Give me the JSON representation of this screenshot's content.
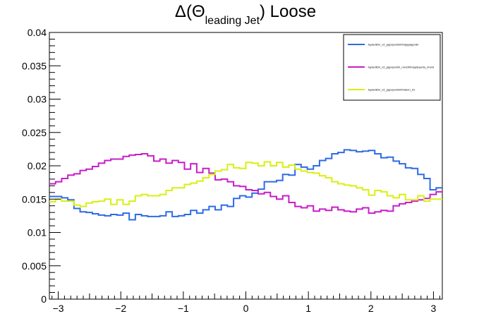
{
  "chart_data": {
    "type": "line",
    "title": {
      "prefix": "Δ(Θ",
      "subscript": "leading Jet",
      "suffix": ") Loose"
    },
    "xlabel": "",
    "ylabel": "",
    "xlim": [
      -3.1416,
      3.1416
    ],
    "ylim": [
      0,
      0.04
    ],
    "x_ticks": [
      -3,
      -2,
      -1,
      0,
      1,
      2,
      3
    ],
    "x_tick_labels": [
      "−3",
      "−2",
      "−1",
      "0",
      "1",
      "2",
      "3"
    ],
    "y_ticks": [
      0,
      0.005,
      0.01,
      0.015,
      0.02,
      0.025,
      0.03,
      0.035,
      0.04
    ],
    "y_tick_labels": [
      "0",
      "0.005",
      "0.01",
      "0.015",
      "0.02",
      "0.025",
      "0.03",
      "0.035",
      "0.04"
    ],
    "grid": false,
    "legend_position": "top-right",
    "bins": 64,
    "series": [
      {
        "name": "tuple/dDn_v2_pppvpxx0n/hhdyyyappnbr",
        "color": "#2e6be6",
        "values": [
          0.0154,
          0.0154,
          0.0152,
          0.0149,
          0.0136,
          0.0131,
          0.013,
          0.0128,
          0.0126,
          0.0125,
          0.0127,
          0.0126,
          0.0129,
          0.0119,
          0.0127,
          0.0125,
          0.0124,
          0.0124,
          0.0125,
          0.0131,
          0.0124,
          0.0125,
          0.0127,
          0.0133,
          0.0129,
          0.0134,
          0.0139,
          0.0134,
          0.0141,
          0.0139,
          0.0151,
          0.0155,
          0.0153,
          0.0159,
          0.0165,
          0.0176,
          0.0176,
          0.0178,
          0.0187,
          0.0186,
          0.0202,
          0.0198,
          0.0195,
          0.02,
          0.0208,
          0.0211,
          0.0218,
          0.022,
          0.0224,
          0.0223,
          0.0221,
          0.0222,
          0.0223,
          0.0218,
          0.0212,
          0.0213,
          0.0207,
          0.0203,
          0.0197,
          0.0196,
          0.0187,
          0.0181,
          0.0164,
          0.0167
        ]
      },
      {
        "name": "tuple/dDn_v2_pppvpxx0n_nnvchhh/ppduyvdu_nnvnt",
        "color": "#c81ec8",
        "values": [
          0.0173,
          0.0176,
          0.0181,
          0.0186,
          0.0188,
          0.0193,
          0.0195,
          0.0199,
          0.0204,
          0.0208,
          0.021,
          0.021,
          0.0214,
          0.0216,
          0.0217,
          0.0218,
          0.0215,
          0.0207,
          0.021,
          0.0204,
          0.0208,
          0.0205,
          0.0195,
          0.0203,
          0.019,
          0.0196,
          0.0189,
          0.0179,
          0.018,
          0.0176,
          0.017,
          0.0169,
          0.0164,
          0.0163,
          0.0158,
          0.016,
          0.0154,
          0.015,
          0.0155,
          0.0145,
          0.0139,
          0.0137,
          0.014,
          0.0132,
          0.0135,
          0.0133,
          0.0138,
          0.0134,
          0.0132,
          0.0131,
          0.0135,
          0.0137,
          0.0129,
          0.0131,
          0.0133,
          0.0132,
          0.014,
          0.0143,
          0.0145,
          0.0147,
          0.0149,
          0.0151,
          0.0157,
          0.0161
        ]
      },
      {
        "name": "tuple/dDn_v2_pppvpxx0n/hhdunn_01",
        "color": "#d8f012",
        "values": [
          0.0146,
          0.015,
          0.0147,
          0.0147,
          0.0141,
          0.0139,
          0.0144,
          0.0146,
          0.0147,
          0.015,
          0.0142,
          0.0149,
          0.0142,
          0.0147,
          0.0155,
          0.0157,
          0.0155,
          0.0155,
          0.0157,
          0.0163,
          0.0167,
          0.0167,
          0.0172,
          0.0174,
          0.0177,
          0.0182,
          0.0187,
          0.0192,
          0.0194,
          0.0202,
          0.0197,
          0.0196,
          0.0205,
          0.0204,
          0.02,
          0.0206,
          0.02,
          0.0205,
          0.0198,
          0.0201,
          0.0195,
          0.0192,
          0.019,
          0.0189,
          0.0185,
          0.0182,
          0.0176,
          0.0173,
          0.0171,
          0.017,
          0.0167,
          0.0164,
          0.0156,
          0.0163,
          0.0161,
          0.0155,
          0.0152,
          0.0157,
          0.0149,
          0.0149,
          0.0155,
          0.0147,
          0.015,
          0.015
        ]
      }
    ]
  }
}
